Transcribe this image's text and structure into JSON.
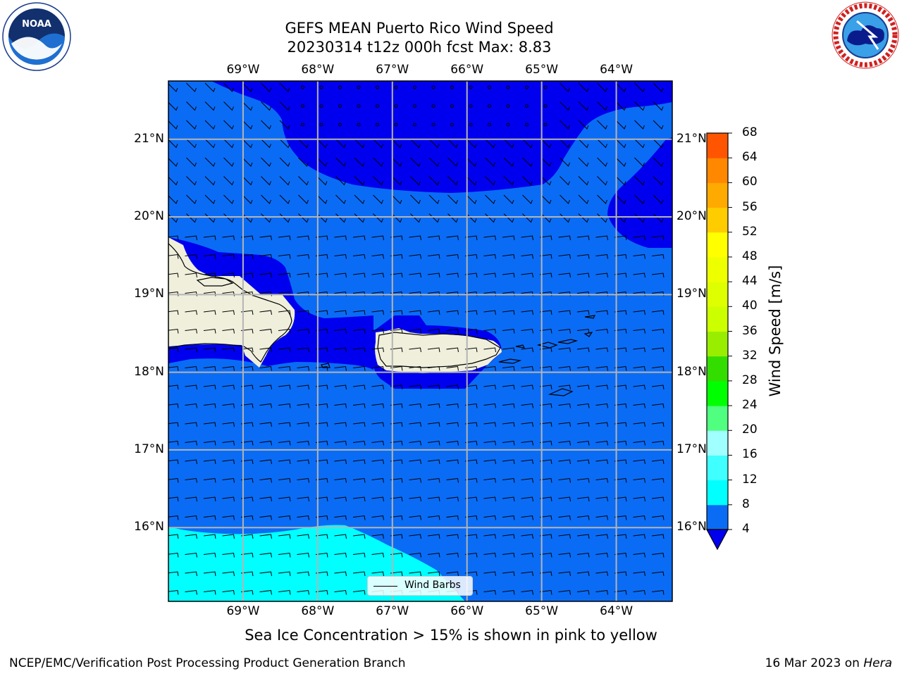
{
  "header": {
    "title_line1": "GEFS MEAN Puerto Rico Wind Speed",
    "title_line2": "20230314 t12z 000h fcst   Max: 8.83"
  },
  "logos": {
    "left": {
      "name": "noaa-logo",
      "text": "NOAA",
      "ring_text": "NATIONAL OCEANIC AND ATMOSPHERIC ADMINISTRATION · U.S. DEPARTMENT OF COMMERCE"
    },
    "right": {
      "name": "nws-logo",
      "ring_text": "NATIONAL WEATHER SERVICE"
    }
  },
  "map": {
    "lon_labels": [
      "69°W",
      "68°W",
      "67°W",
      "66°W",
      "65°W",
      "64°W"
    ],
    "lat_labels": [
      "21°N",
      "20°N",
      "19°N",
      "18°N",
      "17°N",
      "16°N"
    ],
    "extent": {
      "lon_min": -70.0,
      "lon_max": -63.25,
      "lat_min": 15.05,
      "lat_max": 21.75
    },
    "legend_label": "Wind Barbs",
    "colors": {
      "band_4_8": "#0a6cf5",
      "band_below_4": "#0000ee",
      "band_8_12": "#00ffff",
      "land": "#efefdc",
      "grid": "#b4b4b4"
    }
  },
  "colorbar": {
    "title": "Wind Speed [m/s]",
    "ticks": [
      "68",
      "64",
      "60",
      "56",
      "52",
      "48",
      "44",
      "40",
      "36",
      "32",
      "28",
      "24",
      "20",
      "16",
      "12",
      "8",
      "4"
    ],
    "colors_low_to_high": [
      "#0a6cf5",
      "#00ffff",
      "#40ffff",
      "#a0ffff",
      "#50ff80",
      "#00ff00",
      "#33dd00",
      "#99ee00",
      "#ccff00",
      "#ddff00",
      "#eeff00",
      "#ffff00",
      "#ffcc00",
      "#ffaa00",
      "#ff8800",
      "#ff5500",
      "#ff2200",
      "#ff0000"
    ],
    "under_color": "#0000ee"
  },
  "caption": "Sea Ice Concentration > 15% is shown in pink to yellow",
  "footer": {
    "left": "NCEP/EMC/Verification Post Processing Product Generation Branch",
    "right_prefix": "16 Mar 2023 on ",
    "right_host": "Hera"
  }
}
